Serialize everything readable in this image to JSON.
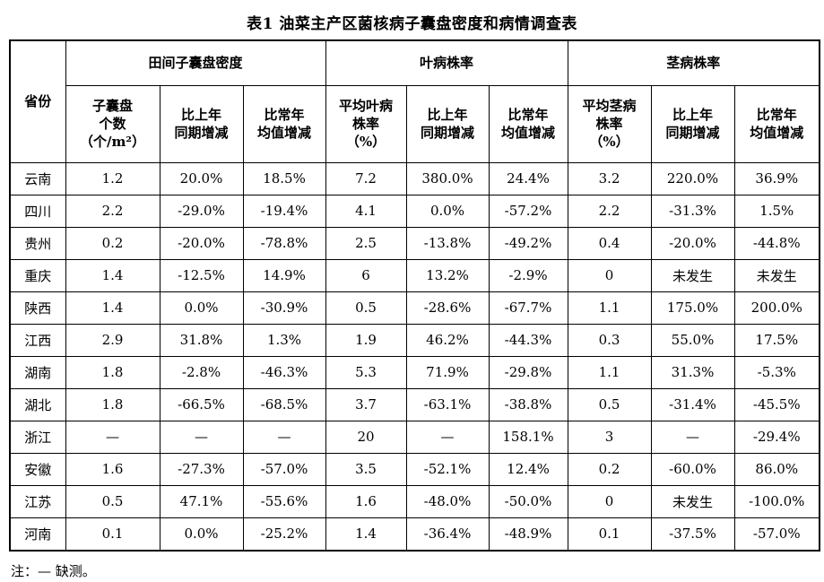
{
  "title": "表1  油菜主产区菌核病子囊盘密度和病情调查表",
  "header": {
    "province": "省份",
    "group1": "田间子囊盘密度",
    "group2": "叶病株率",
    "group3": "茎病株率",
    "g1_c1": "子囊盘\n个数\n（个/m²）",
    "g1_c2": "比上年\n同期增减",
    "g1_c3": "比常年\n均值增减",
    "g2_c1": "平均叶病\n株率\n（%）",
    "g2_c2": "比上年\n同期增减",
    "g2_c3": "比常年\n均值增减",
    "g3_c1": "平均茎病\n株率\n（%）",
    "g3_c2": "比上年\n同期增减",
    "g3_c3": "比常年\n均值增减"
  },
  "rows": [
    [
      "云南",
      "1.2",
      "20.0%",
      "18.5%",
      "7.2",
      "380.0%",
      "24.4%",
      "3.2",
      "220.0%",
      "36.9%"
    ],
    [
      "四川",
      "2.2",
      "-29.0%",
      "-19.4%",
      "4.1",
      "0.0%",
      "-57.2%",
      "2.2",
      "-31.3%",
      "1.5%"
    ],
    [
      "贵州",
      "0.2",
      "-20.0%",
      "-78.8%",
      "2.5",
      "-13.8%",
      "-49.2%",
      "0.4",
      "-20.0%",
      "-44.8%"
    ],
    [
      "重庆",
      "1.4",
      "-12.5%",
      "14.9%",
      "6",
      "13.2%",
      "-2.9%",
      "0",
      "未发生",
      "未发生"
    ],
    [
      "陕西",
      "1.4",
      "0.0%",
      "-30.9%",
      "0.5",
      "-28.6%",
      "-67.7%",
      "1.1",
      "175.0%",
      "200.0%"
    ],
    [
      "江西",
      "2.9",
      "31.8%",
      "1.3%",
      "1.9",
      "46.2%",
      "-44.3%",
      "0.3",
      "55.0%",
      "17.5%"
    ],
    [
      "湖南",
      "1.8",
      "-2.8%",
      "-46.3%",
      "5.3",
      "71.9%",
      "-29.8%",
      "1.1",
      "31.3%",
      "-5.3%"
    ],
    [
      "湖北",
      "1.8",
      "-66.5%",
      "-68.5%",
      "3.7",
      "-63.1%",
      "-38.8%",
      "0.5",
      "-31.4%",
      "-45.5%"
    ],
    [
      "浙江",
      "—",
      "—",
      "—",
      "20",
      "—",
      "158.1%",
      "3",
      "—",
      "-29.4%"
    ],
    [
      "安徽",
      "1.6",
      "-27.3%",
      "-57.0%",
      "3.5",
      "-52.1%",
      "12.4%",
      "0.2",
      "-60.0%",
      "86.0%"
    ],
    [
      "江苏",
      "0.5",
      "47.1%",
      "-55.6%",
      "1.6",
      "-48.0%",
      "-50.0%",
      "0",
      "未发生",
      "-100.0%"
    ],
    [
      "河南",
      "0.1",
      "0.0%",
      "-25.2%",
      "1.4",
      "-36.4%",
      "-48.9%",
      "0.1",
      "-37.5%",
      "-57.0%"
    ]
  ],
  "note": "注：— 缺测。"
}
